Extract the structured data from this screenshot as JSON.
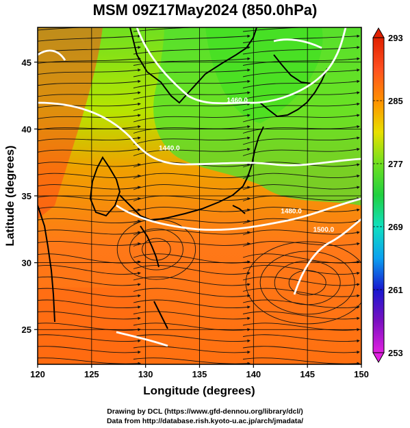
{
  "title": "MSM 09Z17May2024 (850.0hPa)",
  "credits": {
    "line1": "Drawing by DCL (https://www.gfd-dennou.org/library/dcl/)",
    "line2": "Data from http://database.rish.kyoto-u.ac.jp/arch/jmadata/"
  },
  "chart_data": {
    "type": "heatmap",
    "title": "MSM 09Z17May2024 (850.0hPa)",
    "xlabel": "Longitude (degrees)",
    "ylabel": "Latitude  (degrees)",
    "xlim": [
      120,
      150
    ],
    "ylim": [
      22.4,
      47.6
    ],
    "xticks": [
      120,
      125,
      130,
      135,
      140,
      145,
      150
    ],
    "yticks": [
      25,
      30,
      35,
      40,
      45
    ],
    "x_tick_labels": [
      "120",
      "125",
      "130",
      "135",
      "140",
      "145",
      "150"
    ],
    "y_tick_labels": [
      "25",
      "30",
      "35",
      "40",
      "45"
    ],
    "grid": true,
    "colorbar": {
      "min": 253,
      "max": 293,
      "tick_values": [
        253,
        261,
        269,
        277,
        285,
        293
      ],
      "tick_labels": [
        "253",
        "261",
        "269",
        "277",
        "285",
        "293"
      ],
      "colors": [
        "#e020e0",
        "#7a10c0",
        "#1818d0",
        "#0aa0f0",
        "#10e0c0",
        "#20d040",
        "#70e020",
        "#e8e000",
        "#ff9000",
        "#ff5020",
        "#e02000"
      ]
    },
    "contours": [
      {
        "label": "1440.0"
      },
      {
        "label": "1460.0"
      },
      {
        "label": "1480.0"
      },
      {
        "label": "1500.0"
      }
    ],
    "overlay": "streamlines",
    "land_outline_color": "#000000",
    "contour_color": "#ffffff"
  }
}
